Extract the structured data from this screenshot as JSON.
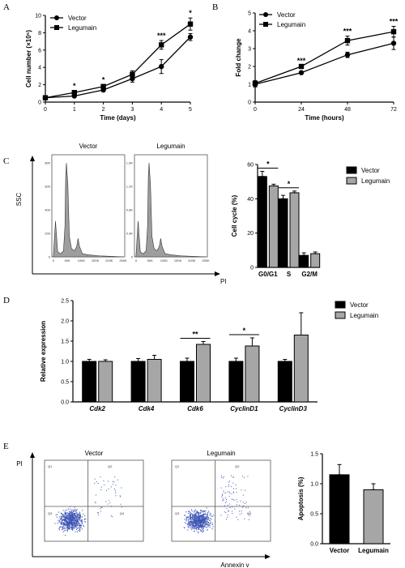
{
  "panels": {
    "A": {
      "letter": "A"
    },
    "B": {
      "letter": "B"
    },
    "C": {
      "letter": "C"
    },
    "D": {
      "letter": "D"
    },
    "E": {
      "letter": "E"
    }
  },
  "colors": {
    "vector": "#000000",
    "legumain": "#a6a6a6",
    "flow_fill": "#9e9e9e",
    "dots": "#3d55b5"
  },
  "chart_data": [
    {
      "id": "A",
      "type": "line",
      "xlabel": "Time (days)",
      "ylabel": "Cell number (×10⁵)",
      "xlim": [
        0,
        5
      ],
      "ylim": [
        0,
        10
      ],
      "xticks": [
        0,
        1,
        2,
        3,
        4,
        5
      ],
      "yticks": [
        0,
        2,
        4,
        6,
        8,
        10
      ],
      "legend": {
        "position": "top-left",
        "entries": [
          "Vector",
          "Legumain"
        ]
      },
      "series": [
        {
          "name": "Vector",
          "marker": "circle",
          "x": [
            0,
            1,
            2,
            3,
            4,
            5
          ],
          "y": [
            0.5,
            0.7,
            1.4,
            2.7,
            4.1,
            7.5
          ],
          "err": [
            0.1,
            0.1,
            0.2,
            0.4,
            0.8,
            0.4
          ]
        },
        {
          "name": "Legumain",
          "marker": "square",
          "x": [
            0,
            1,
            2,
            3,
            4,
            5
          ],
          "y": [
            0.5,
            1.1,
            1.8,
            3.2,
            6.6,
            9.0
          ],
          "err": [
            0.1,
            0.2,
            0.2,
            0.4,
            0.5,
            0.7
          ]
        }
      ],
      "annotations": [
        {
          "x": 1,
          "text": "*"
        },
        {
          "x": 2,
          "text": "*"
        },
        {
          "x": 4,
          "text": "***"
        },
        {
          "x": 5,
          "text": "*"
        }
      ]
    },
    {
      "id": "B",
      "type": "line",
      "xlabel": "Time (hours)",
      "ylabel": "Fold change",
      "xlim": [
        0,
        72
      ],
      "ylim": [
        0,
        5
      ],
      "xticks": [
        0,
        24,
        48,
        72
      ],
      "yticks": [
        0,
        1,
        2,
        3,
        4,
        5
      ],
      "legend": {
        "position": "top-left",
        "entries": [
          "Vector",
          "Legumain"
        ]
      },
      "series": [
        {
          "name": "Vector",
          "marker": "circle",
          "x": [
            0,
            24,
            48,
            72
          ],
          "y": [
            1.0,
            1.65,
            2.65,
            3.3
          ],
          "err": [
            0.15,
            0.05,
            0.15,
            0.35
          ]
        },
        {
          "name": "Legumain",
          "marker": "square",
          "x": [
            0,
            24,
            48,
            72
          ],
          "y": [
            1.05,
            2.0,
            3.45,
            3.95
          ],
          "err": [
            0.15,
            0.05,
            0.25,
            0.3
          ]
        }
      ],
      "annotations": [
        {
          "x": 24,
          "text": "***"
        },
        {
          "x": 48,
          "text": "***"
        },
        {
          "x": 72,
          "text": "***"
        }
      ]
    },
    {
      "id": "C-flow",
      "type": "area",
      "ylabel": "SSC",
      "xlabel": "PI",
      "histograms": [
        {
          "title": "Vector",
          "yticks": [
            "0",
            "200",
            "400",
            "600",
            "800"
          ],
          "xticks": [
            "0",
            "50K",
            "100K",
            "150K",
            "200K",
            "250K"
          ]
        },
        {
          "title": "Legumain",
          "yticks": [
            "0",
            "0.4K",
            "0.8K",
            "1.2K",
            "1.6K"
          ],
          "xticks": [
            "0",
            "50K",
            "100K",
            "150K",
            "200K",
            "250K"
          ]
        }
      ]
    },
    {
      "id": "C",
      "type": "bar",
      "ylabel": "Cell cycle (%)",
      "categories": [
        "G0/G1",
        "S",
        "G2/M"
      ],
      "ylim": [
        0,
        60
      ],
      "yticks": [
        0,
        20,
        40,
        60
      ],
      "legend": {
        "position": "top-right",
        "entries": [
          "Vector",
          "Legumain"
        ]
      },
      "series": [
        {
          "name": "Vector",
          "values": [
            53,
            40,
            7
          ],
          "err": [
            3,
            2,
            1.5
          ]
        },
        {
          "name": "Legumain",
          "values": [
            47.5,
            43.5,
            8
          ],
          "err": [
            1,
            1,
            1
          ]
        }
      ],
      "annotations": [
        {
          "category": "G0/G1",
          "text": "*"
        },
        {
          "category": "S",
          "text": "*"
        }
      ]
    },
    {
      "id": "D",
      "type": "bar",
      "ylabel": "Relative expression",
      "categories": [
        "Cdk2",
        "Cdk4",
        "Cdk6",
        "CyclinD1",
        "CyclinD3"
      ],
      "ylim": [
        0,
        2.5
      ],
      "yticks": [
        "0.0",
        "0.5",
        "1.0",
        "1.5",
        "2.0",
        "2.5"
      ],
      "legend": {
        "position": "top-right",
        "entries": [
          "Vector",
          "Legumain"
        ]
      },
      "series": [
        {
          "name": "Vector",
          "values": [
            1.0,
            1.0,
            1.0,
            1.0,
            1.0
          ],
          "err": [
            0.05,
            0.07,
            0.08,
            0.08,
            0.05
          ]
        },
        {
          "name": "Legumain",
          "values": [
            1.0,
            1.05,
            1.42,
            1.38,
            1.65
          ],
          "err": [
            0.04,
            0.1,
            0.07,
            0.2,
            0.55
          ]
        }
      ],
      "annotations": [
        {
          "category": "Cdk6",
          "text": "**"
        },
        {
          "category": "CyclinD1",
          "text": "*"
        }
      ]
    },
    {
      "id": "E-flow",
      "type": "scatter",
      "ylabel": "PI",
      "xlabel": "Annexin v",
      "plots": [
        {
          "title": "Vector",
          "quadrants": [
            "Q1",
            "Q2",
            "Q3",
            "Q4"
          ]
        },
        {
          "title": "Legumain",
          "quadrants": [
            "Q1",
            "Q2",
            "Q3",
            "Q4"
          ]
        }
      ]
    },
    {
      "id": "E",
      "type": "bar",
      "ylabel": "Apoptosis (%)",
      "categories": [
        "Vector",
        "Legumain"
      ],
      "ylim": [
        0,
        1.5
      ],
      "yticks": [
        "0.0",
        "0.5",
        "1.0",
        "1.5"
      ],
      "values": [
        1.15,
        0.9
      ],
      "err": [
        0.17,
        0.1
      ]
    }
  ]
}
